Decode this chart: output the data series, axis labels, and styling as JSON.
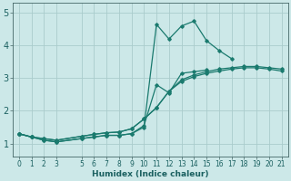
{
  "xlabel": "Humidex (Indice chaleur)",
  "bg_color": "#cce8e8",
  "grid_color": "#aacccc",
  "line_color": "#1a7a6e",
  "xlim": [
    -0.5,
    21.5
  ],
  "ylim": [
    0.6,
    5.3
  ],
  "xticks": [
    0,
    1,
    2,
    3,
    5,
    6,
    7,
    8,
    9,
    10,
    11,
    12,
    13,
    14,
    15,
    16,
    17,
    18,
    19,
    20,
    21
  ],
  "yticks": [
    1,
    2,
    3,
    4,
    5
  ],
  "series_x": [
    [
      0,
      1,
      2,
      3,
      5,
      6,
      7,
      8,
      9,
      10,
      11,
      12,
      13,
      14,
      15,
      16,
      17,
      18,
      19,
      20,
      21
    ],
    [
      0,
      1,
      2,
      3,
      5,
      6,
      7,
      8,
      9,
      10,
      11,
      12,
      13,
      14,
      15,
      16,
      17,
      18,
      19,
      20,
      21
    ],
    [
      0,
      1,
      2,
      3,
      5,
      6,
      7,
      8,
      9,
      10,
      11,
      12,
      13,
      14,
      15,
      16,
      17,
      18,
      19,
      20,
      21
    ],
    [
      0,
      1,
      2,
      3,
      5,
      6,
      7,
      8,
      9,
      10,
      11,
      12,
      13,
      14,
      15,
      16,
      17,
      18,
      19,
      20,
      21
    ]
  ],
  "series_y": [
    [
      1.3,
      1.2,
      1.1,
      1.05,
      1.15,
      1.2,
      1.25,
      1.25,
      1.3,
      1.5,
      4.65,
      4.2,
      4.6,
      4.75,
      4.15,
      3.85,
      3.6,
      null,
      null,
      null,
      null
    ],
    [
      1.3,
      1.2,
      1.1,
      1.05,
      1.15,
      1.2,
      1.25,
      1.25,
      1.3,
      1.55,
      2.8,
      2.55,
      3.15,
      3.2,
      3.25,
      null,
      null,
      null,
      null,
      null,
      null
    ],
    [
      1.3,
      1.2,
      1.15,
      1.1,
      1.22,
      1.28,
      1.33,
      1.35,
      1.45,
      1.75,
      2.1,
      2.6,
      2.9,
      3.05,
      3.15,
      3.22,
      3.28,
      3.32,
      3.32,
      3.28,
      3.22
    ],
    [
      1.3,
      1.2,
      1.15,
      1.1,
      1.22,
      1.28,
      1.33,
      1.35,
      1.45,
      1.75,
      2.1,
      2.6,
      2.95,
      3.1,
      3.2,
      3.28,
      3.32,
      3.36,
      3.36,
      3.32,
      3.28
    ]
  ],
  "tick_fontsize": 5.5,
  "xlabel_fontsize": 6.5,
  "tick_color": "#1a6060",
  "xlabel_color": "#1a6060"
}
